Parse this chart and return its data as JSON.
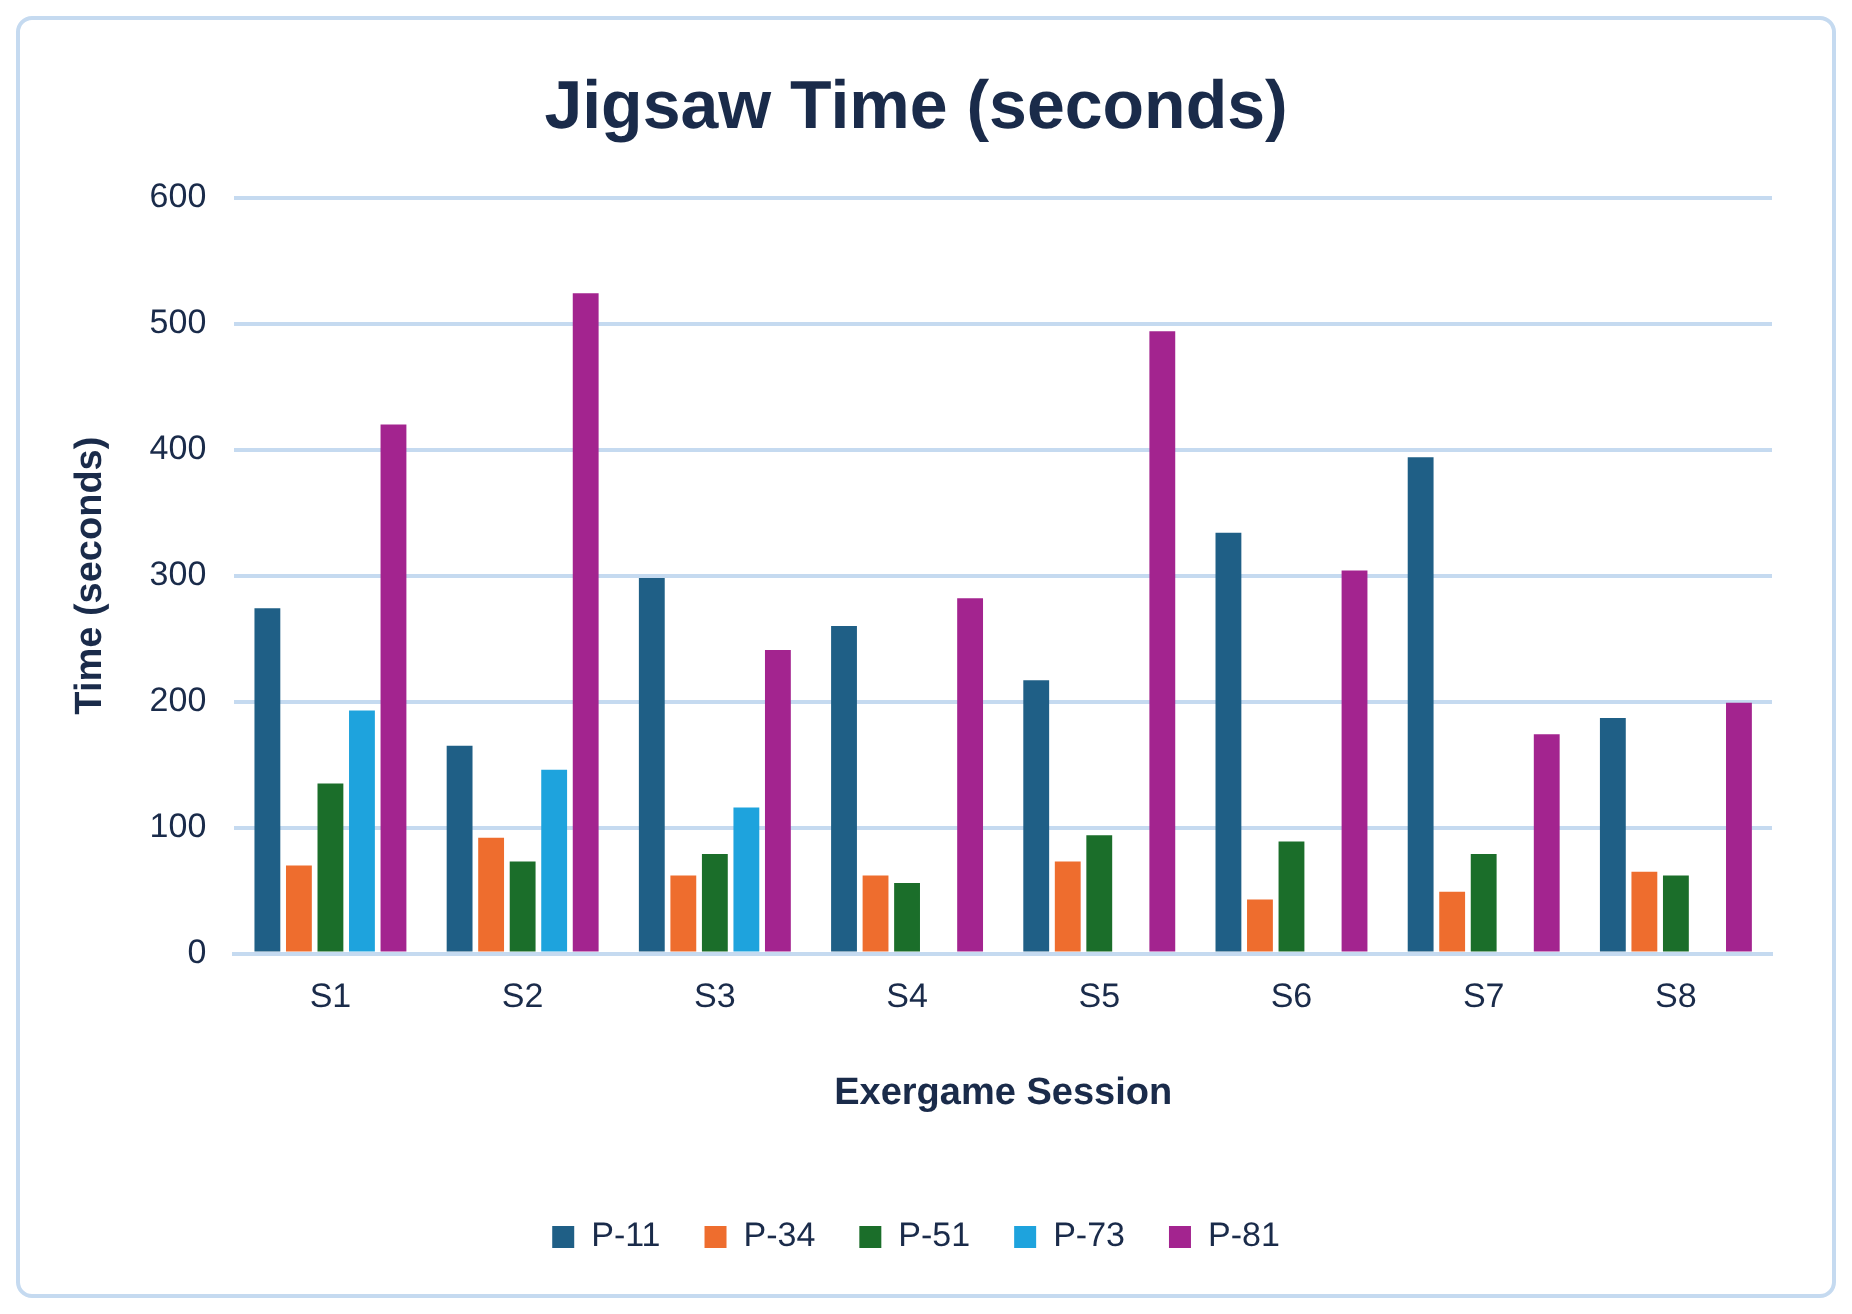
{
  "chart_data": {
    "type": "bar",
    "title": "Jigsaw Time (seconds)",
    "xlabel": "Exergame Session",
    "ylabel": "Time (seconds)",
    "categories": [
      "S1",
      "S2",
      "S3",
      "S4",
      "S5",
      "S6",
      "S7",
      "S8"
    ],
    "series": [
      {
        "name": "P-11",
        "color": "#1f5f86",
        "values": [
          274,
          165,
          298,
          260,
          217,
          334,
          394,
          187
        ]
      },
      {
        "name": "P-34",
        "color": "#ee6d2e",
        "values": [
          70,
          92,
          62,
          62,
          73,
          43,
          49,
          65
        ]
      },
      {
        "name": "P-51",
        "color": "#1b6e2a",
        "values": [
          135,
          73,
          79,
          56,
          94,
          89,
          79,
          62
        ]
      },
      {
        "name": "P-73",
        "color": "#1ea3dd",
        "values": [
          193,
          146,
          116,
          null,
          null,
          null,
          null,
          null
        ]
      },
      {
        "name": "P-81",
        "color": "#a3248f",
        "values": [
          420,
          524,
          241,
          282,
          494,
          304,
          174,
          199
        ]
      }
    ],
    "ylim": [
      0,
      600
    ],
    "yticks": [
      0,
      100,
      200,
      300,
      400,
      500,
      600
    ],
    "grid": "y",
    "legend": "bottom"
  }
}
